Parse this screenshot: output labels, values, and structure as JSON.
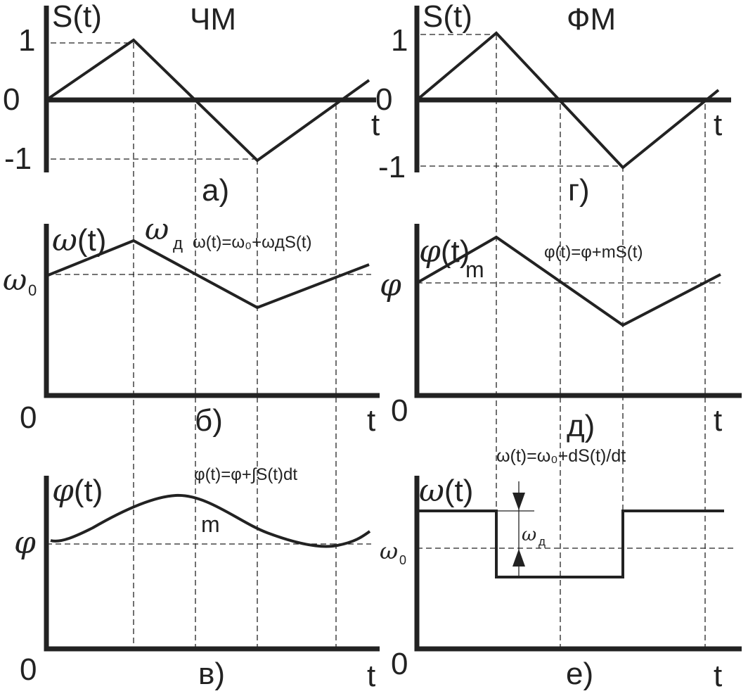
{
  "titles": {
    "fm_freq": "ЧМ",
    "pm_phase": "ФМ"
  },
  "panel_labels": {
    "a": "а)",
    "b": "б)",
    "v": "в)",
    "g": "г)",
    "d": "д)",
    "e": "е)"
  },
  "axis": {
    "s_of_t": "S(t)",
    "t": "t",
    "zero": "0",
    "one": "1",
    "minus_one": "-1",
    "omega_of_t": "ω(t)",
    "phi_of_t": "φ(t)",
    "omega": "ω",
    "omega_sub0": "0",
    "omega_sub_d": "д",
    "phi": "φ",
    "m": "m"
  },
  "formulas": {
    "b": "ω(t)=ω₀+ωдS(t)",
    "v": "φ(t)=φ+∫S(t)dt",
    "d": "φ(t)=φ+mS(t)",
    "e": "ω(t)=ω₀+dS(t)/dt"
  }
}
